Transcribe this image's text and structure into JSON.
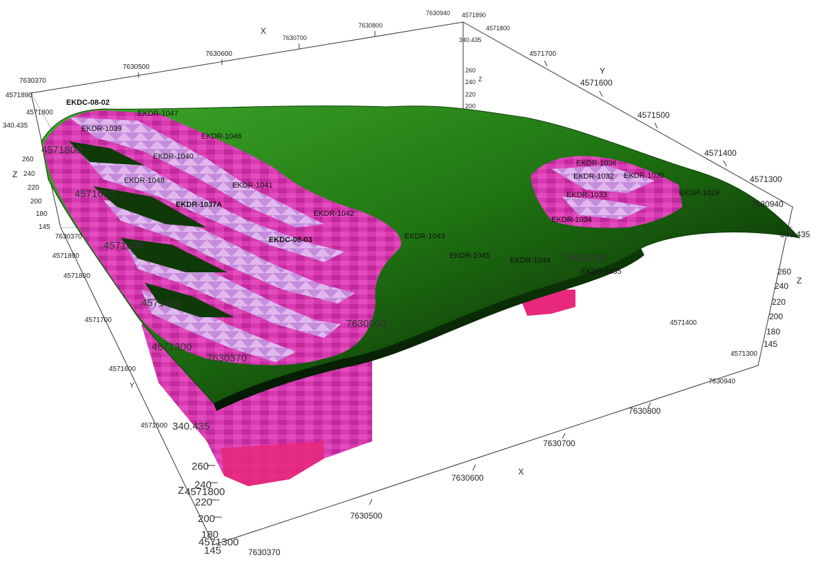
{
  "axes": {
    "x_title": "X",
    "y_title": "Y",
    "z_title": "Z",
    "top_x_ticks": [
      "7630370",
      "7630500",
      "7630600",
      "7630700",
      "7630800",
      "7630940"
    ],
    "top_y_ticks": [
      "4571890",
      "4571800",
      "4571700",
      "4571600",
      "4571500",
      "4571400",
      "4571300"
    ],
    "bottom_x_ticks": [
      "7630370",
      "7630500",
      "7630600",
      "7630700",
      "7630800",
      "7630940"
    ],
    "left_y_ticks": [
      "4571890",
      "4571800",
      "4571700",
      "4571600",
      "4571500",
      "4571400",
      "4571300"
    ],
    "right_y_ticks": [
      "4571400",
      "4571300"
    ],
    "z_ticks": [
      "340.435",
      "260",
      "240",
      "220",
      "200",
      "180",
      "145"
    ],
    "top_z_ticks": [
      "340.435",
      "260",
      "240",
      "220",
      "200"
    ],
    "ghost_labels": [
      "4571800",
      "4571600",
      "4571500",
      "4571400",
      "4571300",
      "7630500",
      "7630370",
      "7630700",
      "340.435"
    ]
  },
  "drillholes": {
    "EKDC_08_02_corner": "EKDC-08-02",
    "EKDR_1047": "EKDR-1047",
    "EKDR_1046": "EKDR-1046",
    "EKDR_1039": "EKDR-1039",
    "EKDR_1049": "EKDR-1049",
    "EKDR_1040": "EKDR-1040",
    "EKDR_1048": "EKDR-1048",
    "EKDR_1041": "EKDR-1041",
    "EKDR_1037A": "EKDR-1037A",
    "EKDR_1042": "EKDR-1042",
    "EKDC_08_03": "EKDC-08-03",
    "EKDR_1043": "EKDR-1043",
    "EKDR_1045": "EKDR-1045",
    "EKDR_1044": "EKDR-1044",
    "EKDR_1035": "EKDR-1035",
    "EKDR_1036": "EKDR-1036",
    "EKDC_08_01": "EKDC-08-01",
    "EKDR_1032": "EKDR-1032",
    "EKDR_1030": "EKDR-1030",
    "EKDR_1029": "EKDR-1029",
    "EKDR_1033": "EKDR-1033",
    "EKDR_1034": "EKDR-1034"
  },
  "colors": {
    "terrain_light": "#2f9a1a",
    "terrain_dark": "#0a2a05",
    "ore_magenta": "#d42aa8",
    "ore_light": "#c89ae0",
    "ore_pink": "#e8287a"
  }
}
